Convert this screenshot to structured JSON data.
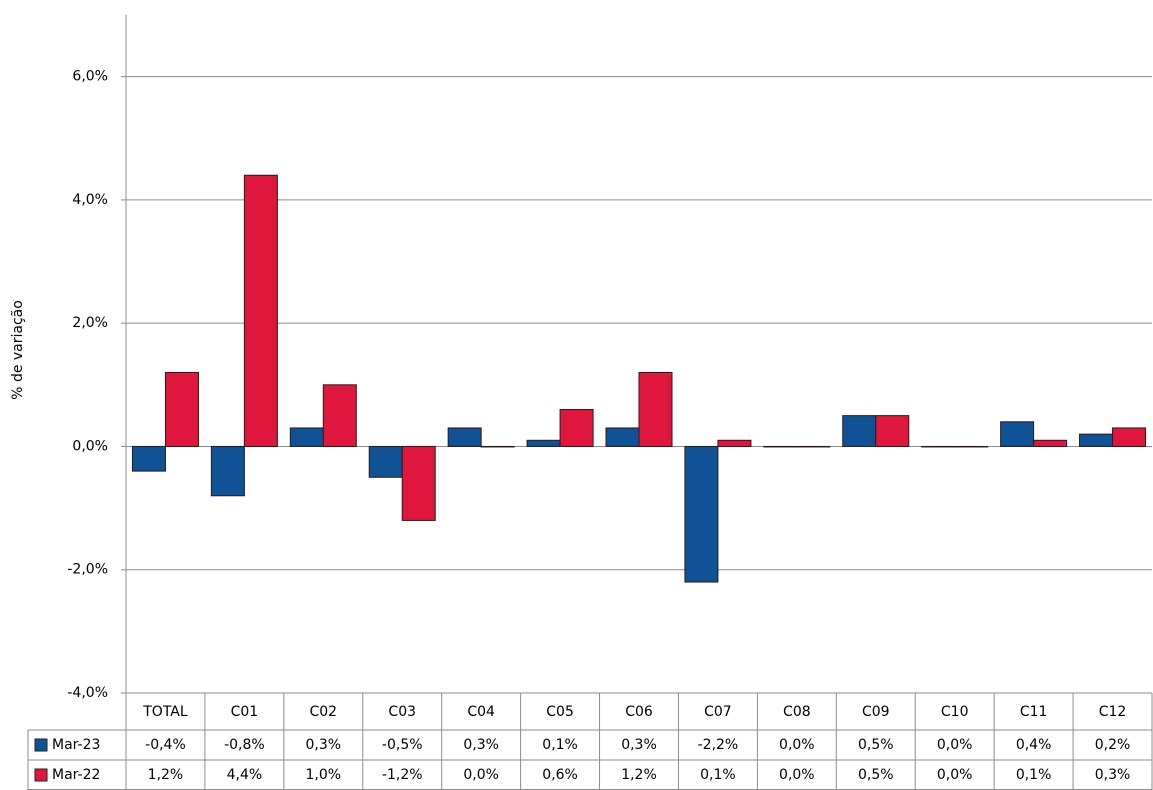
{
  "chart_data": {
    "type": "bar",
    "y_label": "% de variação",
    "categories": [
      "TOTAL",
      "C01",
      "C02",
      "C03",
      "C04",
      "C05",
      "C06",
      "C07",
      "C08",
      "C09",
      "C10",
      "C11",
      "C12"
    ],
    "series": [
      {
        "name": "Mar-23",
        "color": "#0f5296",
        "values": [
          -0.4,
          -0.8,
          0.3,
          -0.5,
          0.3,
          0.1,
          0.3,
          -2.2,
          0.0,
          0.5,
          0.0,
          0.4,
          0.2
        ],
        "value_labels": [
          "-0,4%",
          "-0,8%",
          "0,3%",
          "-0,5%",
          "0,3%",
          "0,1%",
          "0,3%",
          "-2,2%",
          "0,0%",
          "0,5%",
          "0,0%",
          "0,4%",
          "0,2%"
        ]
      },
      {
        "name": "Mar-22",
        "color": "#e0173c",
        "values": [
          1.2,
          4.4,
          1.0,
          -1.2,
          0.0,
          0.6,
          1.2,
          0.1,
          0.0,
          0.5,
          0.0,
          0.1,
          0.3
        ],
        "value_labels": [
          "1,2%",
          "4,4%",
          "1,0%",
          "-1,2%",
          "0,0%",
          "0,6%",
          "1,2%",
          "0,1%",
          "0,0%",
          "0,5%",
          "0,0%",
          "0,1%",
          "0,3%"
        ]
      }
    ],
    "ylim": [
      -4,
      7
    ],
    "yticks": [
      {
        "value": -4,
        "label": "-4,0%"
      },
      {
        "value": -2,
        "label": "-2,0%"
      },
      {
        "value": 0,
        "label": "0,0%"
      },
      {
        "value": 2,
        "label": "2,0%"
      },
      {
        "value": 4,
        "label": "4,0%"
      },
      {
        "value": 6,
        "label": "6,0%"
      }
    ],
    "grid": true,
    "data_table": true
  }
}
